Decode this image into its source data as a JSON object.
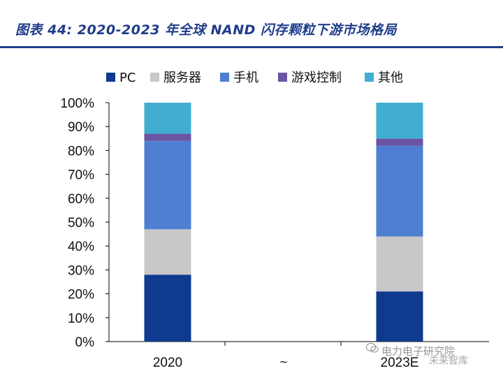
{
  "title": "图表 44:  2020-2023 年全球 NAND 闪存颗粒下游市场格局",
  "colors": {
    "title": "#1f3d8a",
    "pc": "#0e3a8f",
    "server": "#c8c8c8",
    "phone": "#4e7fd2",
    "gaming": "#6a55a3",
    "other": "#41aed1"
  },
  "watermark": {
    "line1": "电力电子研究院",
    "line2": "未来智库"
  },
  "chart_data": {
    "type": "bar",
    "stacked": true,
    "title": "图表 44:  2020-2023 年全球 NAND 闪存颗粒下游市场格局",
    "categories": [
      "2020",
      "~",
      "2023E"
    ],
    "series": [
      {
        "name": "PC",
        "values": [
          28,
          null,
          21
        ],
        "color": "#0e3a8f"
      },
      {
        "name": "服务器",
        "values": [
          19,
          null,
          23
        ],
        "color": "#c8c8c8"
      },
      {
        "name": "手机",
        "values": [
          37,
          null,
          38
        ],
        "color": "#4e7fd2"
      },
      {
        "name": "游戏控制",
        "values": [
          3,
          null,
          3
        ],
        "color": "#6a55a3"
      },
      {
        "name": "其他",
        "values": [
          13,
          null,
          15
        ],
        "color": "#41aed1"
      }
    ],
    "xlabel": "",
    "ylabel": "",
    "ylim": [
      0,
      100
    ],
    "yticks": [
      "0%",
      "10%",
      "20%",
      "30%",
      "40%",
      "50%",
      "60%",
      "70%",
      "80%",
      "90%",
      "100%"
    ],
    "legend_position": "top"
  }
}
